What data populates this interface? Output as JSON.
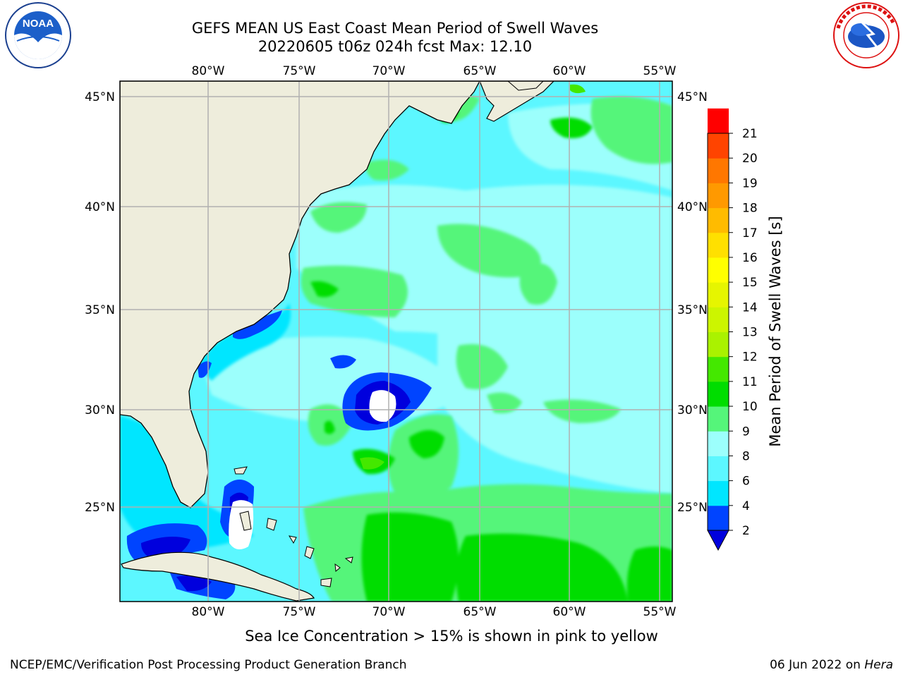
{
  "title": {
    "line1": "GEFS MEAN US East Coast Mean Period of Swell Waves",
    "line2": "20220605 t06z 024h fcst   Max: 12.10"
  },
  "map": {
    "lon_labels": [
      "80°W",
      "75°W",
      "70°W",
      "65°W",
      "60°W",
      "55°W"
    ],
    "lat_labels": [
      "45°N",
      "40°N",
      "35°N",
      "30°N",
      "25°N"
    ],
    "lon_range": [
      -85,
      -55
    ],
    "lat_range": [
      20.5,
      45.8
    ]
  },
  "colorbar": {
    "label": "Mean Period of Swell Waves [s]",
    "ticks": [
      "2",
      "4",
      "6",
      "8",
      "9",
      "10",
      "11",
      "12",
      "13",
      "14",
      "15",
      "16",
      "17",
      "18",
      "19",
      "20",
      "21"
    ],
    "colors": [
      "#0044ff",
      "#00e6ff",
      "#5cf7ff",
      "#9cfffc",
      "#55f57a",
      "#00dd00",
      "#44e800",
      "#aaf200",
      "#ccf500",
      "#e6f500",
      "#ffff00",
      "#ffe000",
      "#ffbb00",
      "#ff9900",
      "#ff7700",
      "#ff4400",
      "#ff0000"
    ],
    "under_color": "#0000dd"
  },
  "note": "Sea Ice Concentration > 15% is shown in pink to yellow",
  "footer": {
    "left": "NCEP/EMC/Verification Post Processing Product Generation Branch",
    "right_date": "06 Jun 2022 on ",
    "right_host": "Hera"
  },
  "logos": {
    "noaa_text": "NOAA",
    "nws_text": "NATIONAL WEATHER SERVICE"
  },
  "colors": {
    "land": "#eeeddc",
    "ocean_base": "#5cf7ff",
    "grid": "#b0b0b0"
  }
}
